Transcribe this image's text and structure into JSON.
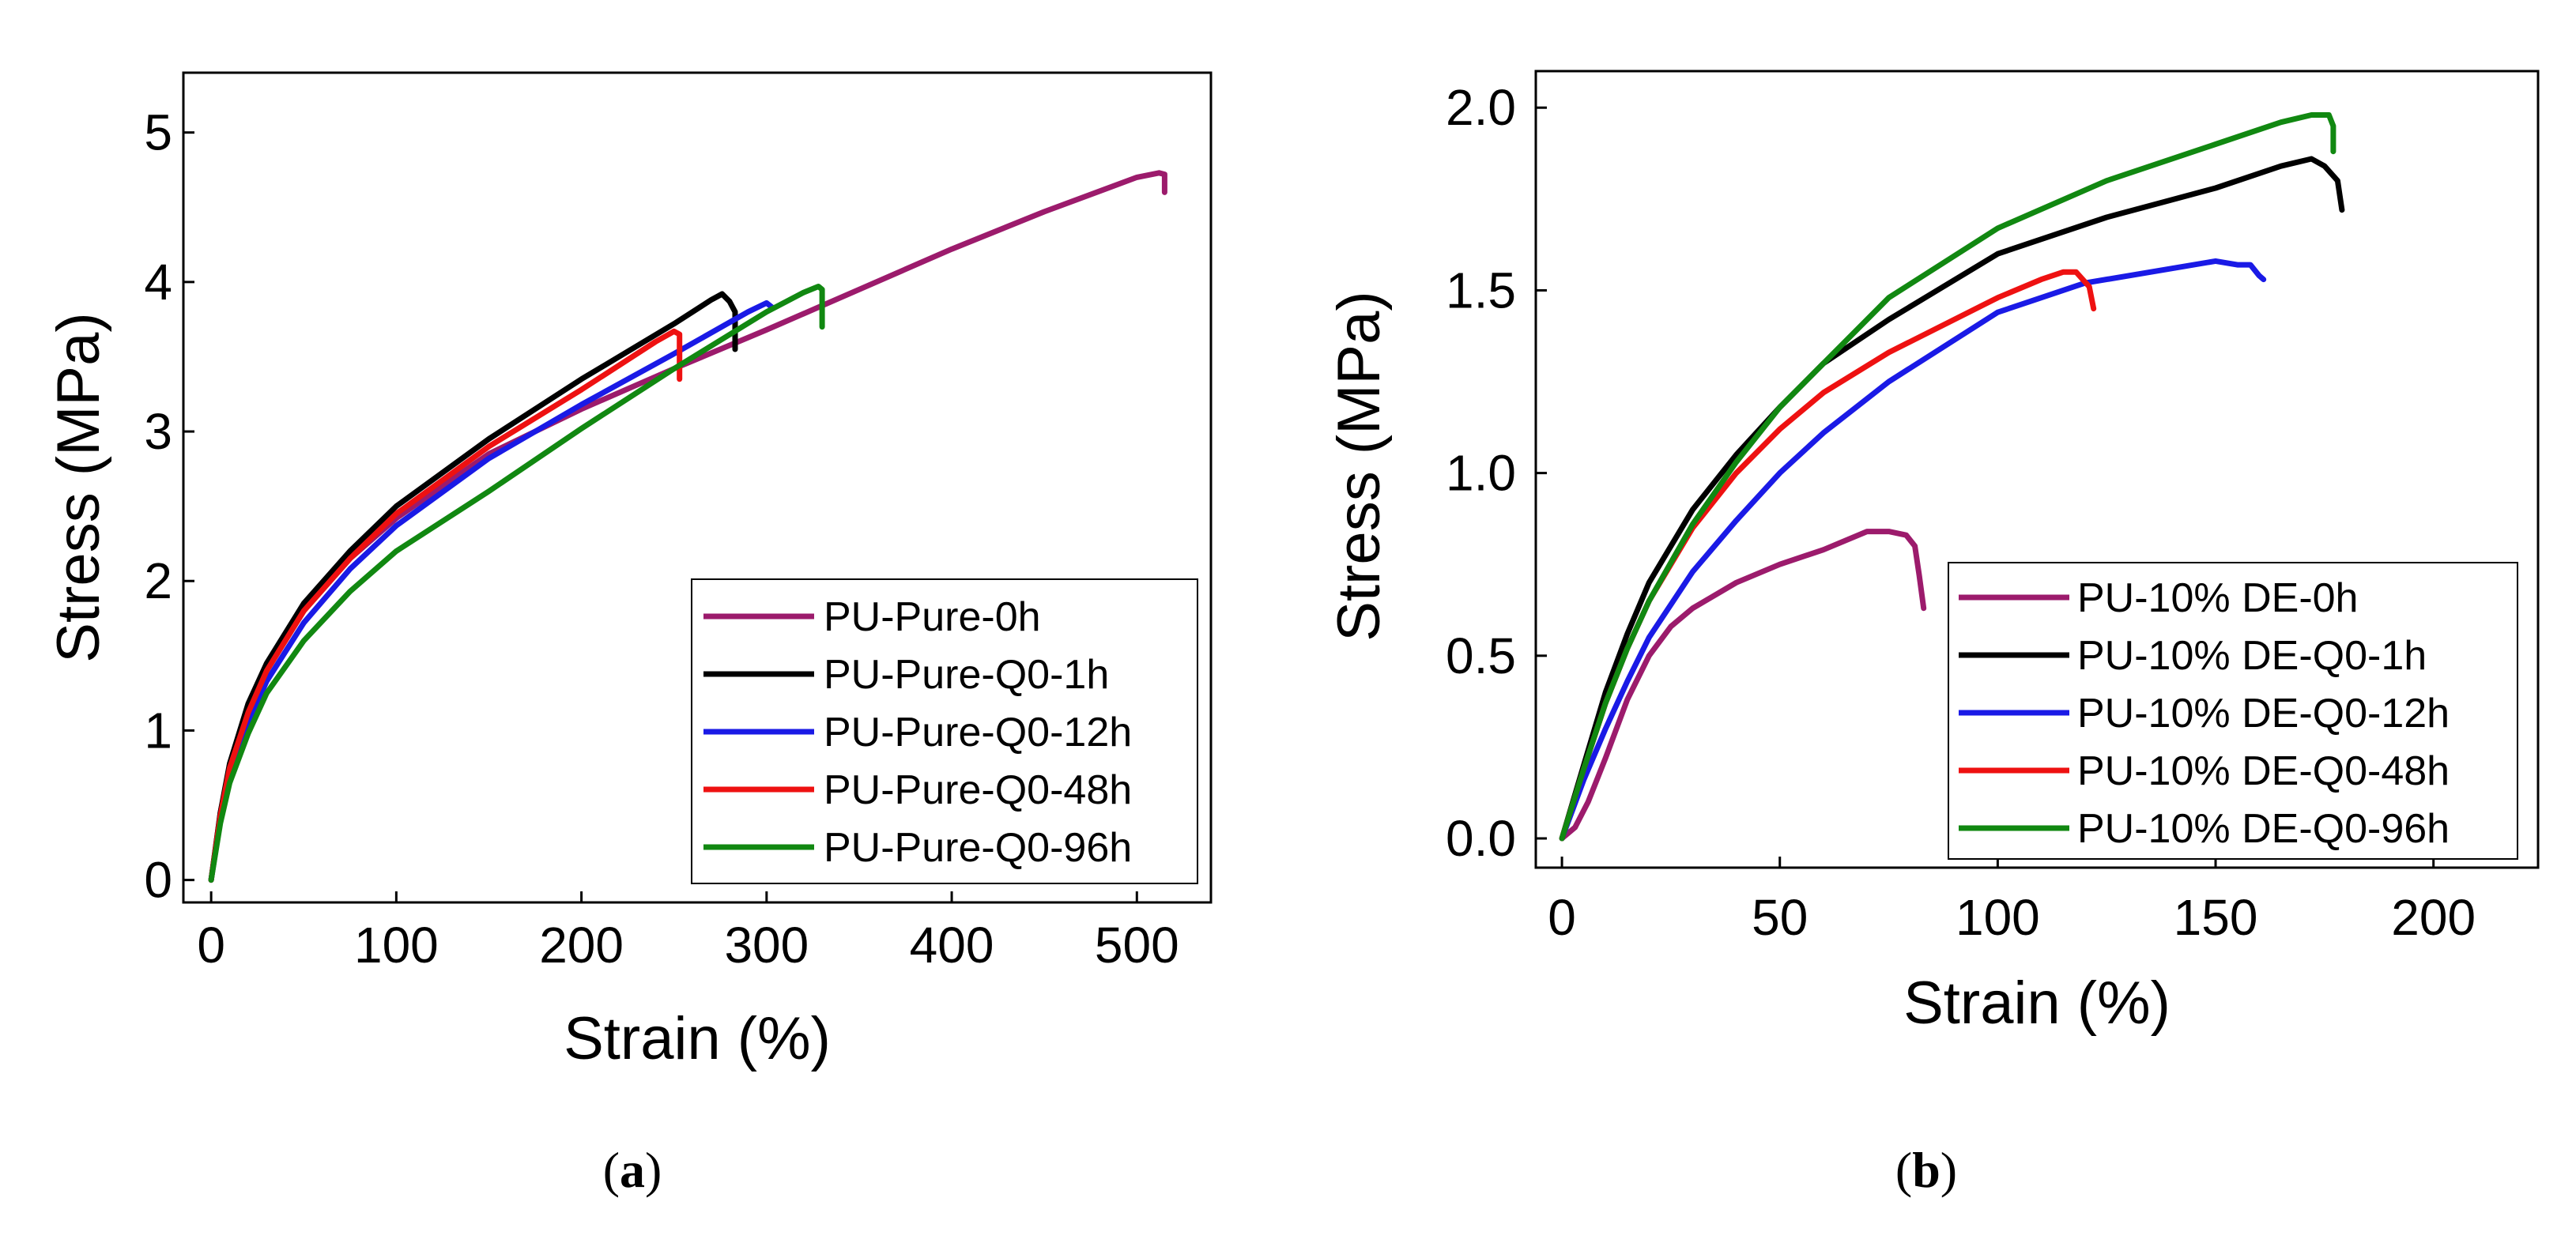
{
  "chart_data": [
    {
      "type": "line",
      "panel_label": "a",
      "xlabel": "Strain (%)",
      "ylabel": "Stress (MPa)",
      "xlim": [
        -15,
        540
      ],
      "ylim": [
        -0.15,
        5.4
      ],
      "xticks": [
        0,
        100,
        200,
        300,
        400,
        500
      ],
      "yticks": [
        0,
        1,
        2,
        3,
        4,
        5
      ],
      "legend_position": "bottom-right",
      "series": [
        {
          "name": "PU-Pure-0h",
          "color": "#9C1B6C",
          "points": [
            [
              0,
              0
            ],
            [
              5,
              0.45
            ],
            [
              10,
              0.75
            ],
            [
              20,
              1.12
            ],
            [
              30,
              1.4
            ],
            [
              50,
              1.8
            ],
            [
              75,
              2.15
            ],
            [
              100,
              2.42
            ],
            [
              150,
              2.85
            ],
            [
              200,
              3.15
            ],
            [
              250,
              3.42
            ],
            [
              300,
              3.68
            ],
            [
              350,
              3.95
            ],
            [
              400,
              4.22
            ],
            [
              450,
              4.47
            ],
            [
              500,
              4.7
            ],
            [
              512,
              4.73
            ],
            [
              515,
              4.72
            ],
            [
              515,
              4.6
            ]
          ]
        },
        {
          "name": "PU-Pure-Q0-1h",
          "color": "#000000",
          "points": [
            [
              0,
              0
            ],
            [
              5,
              0.45
            ],
            [
              10,
              0.78
            ],
            [
              20,
              1.18
            ],
            [
              30,
              1.45
            ],
            [
              50,
              1.85
            ],
            [
              75,
              2.2
            ],
            [
              100,
              2.5
            ],
            [
              150,
              2.95
            ],
            [
              200,
              3.35
            ],
            [
              250,
              3.72
            ],
            [
              270,
              3.88
            ],
            [
              276,
              3.92
            ],
            [
              280,
              3.87
            ],
            [
              283,
              3.8
            ],
            [
              283,
              3.55
            ]
          ]
        },
        {
          "name": "PU-Pure-Q0-12h",
          "color": "#1A1AE6",
          "points": [
            [
              0,
              0
            ],
            [
              5,
              0.4
            ],
            [
              10,
              0.7
            ],
            [
              20,
              1.05
            ],
            [
              30,
              1.33
            ],
            [
              50,
              1.72
            ],
            [
              75,
              2.08
            ],
            [
              100,
              2.37
            ],
            [
              150,
              2.82
            ],
            [
              200,
              3.18
            ],
            [
              250,
              3.52
            ],
            [
              290,
              3.8
            ],
            [
              300,
              3.86
            ],
            [
              303,
              3.83
            ]
          ]
        },
        {
          "name": "PU-Pure-Q0-48h",
          "color": "#EE1111",
          "points": [
            [
              0,
              0
            ],
            [
              5,
              0.43
            ],
            [
              10,
              0.75
            ],
            [
              20,
              1.12
            ],
            [
              30,
              1.4
            ],
            [
              50,
              1.8
            ],
            [
              75,
              2.15
            ],
            [
              100,
              2.45
            ],
            [
              150,
              2.9
            ],
            [
              200,
              3.28
            ],
            [
              240,
              3.6
            ],
            [
              250,
              3.67
            ],
            [
              253,
              3.65
            ],
            [
              253,
              3.35
            ]
          ]
        },
        {
          "name": "PU-Pure-Q0-96h",
          "color": "#118811",
          "points": [
            [
              0,
              0
            ],
            [
              5,
              0.38
            ],
            [
              10,
              0.65
            ],
            [
              20,
              0.98
            ],
            [
              30,
              1.25
            ],
            [
              50,
              1.6
            ],
            [
              75,
              1.93
            ],
            [
              100,
              2.2
            ],
            [
              150,
              2.6
            ],
            [
              200,
              3.02
            ],
            [
              250,
              3.42
            ],
            [
              300,
              3.8
            ],
            [
              320,
              3.93
            ],
            [
              328,
              3.97
            ],
            [
              330,
              3.95
            ],
            [
              330,
              3.7
            ]
          ]
        }
      ],
      "legend": [
        "PU-Pure-0h",
        "PU-Pure-Q0-1h",
        "PU-Pure-Q0-12h",
        "PU-Pure-Q0-48h",
        "PU-Pure-Q0-96h"
      ]
    },
    {
      "type": "line",
      "panel_label": "b",
      "xlabel": "Strain (%)",
      "ylabel": "Stress (MPa)",
      "xlim": [
        -6,
        224
      ],
      "ylim": [
        -0.08,
        2.1
      ],
      "xticks": [
        0,
        50,
        100,
        150,
        200
      ],
      "yticks": [
        0.0,
        0.5,
        1.0,
        1.5,
        2.0
      ],
      "ytick_labels": [
        "0.0",
        "0.5",
        "1.0",
        "1.5",
        "2.0"
      ],
      "legend_position": "bottom-right",
      "series": [
        {
          "name": "PU-10% DE-0h",
          "color": "#9C1B6C",
          "points": [
            [
              0,
              0
            ],
            [
              3,
              0.03
            ],
            [
              6,
              0.1
            ],
            [
              10,
              0.22
            ],
            [
              15,
              0.38
            ],
            [
              20,
              0.5
            ],
            [
              25,
              0.58
            ],
            [
              30,
              0.63
            ],
            [
              40,
              0.7
            ],
            [
              50,
              0.75
            ],
            [
              60,
              0.79
            ],
            [
              70,
              0.84
            ],
            [
              75,
              0.84
            ],
            [
              79,
              0.83
            ],
            [
              81,
              0.8
            ],
            [
              82,
              0.72
            ],
            [
              83,
              0.63
            ]
          ]
        },
        {
          "name": "PU-10% DE-Q0-1h",
          "color": "#000000",
          "points": [
            [
              0,
              0
            ],
            [
              5,
              0.2
            ],
            [
              10,
              0.4
            ],
            [
              15,
              0.56
            ],
            [
              20,
              0.7
            ],
            [
              30,
              0.9
            ],
            [
              40,
              1.05
            ],
            [
              50,
              1.18
            ],
            [
              60,
              1.3
            ],
            [
              75,
              1.42
            ],
            [
              100,
              1.6
            ],
            [
              125,
              1.7
            ],
            [
              150,
              1.78
            ],
            [
              165,
              1.84
            ],
            [
              172,
              1.86
            ],
            [
              175,
              1.84
            ],
            [
              178,
              1.8
            ],
            [
              179,
              1.72
            ]
          ]
        },
        {
          "name": "PU-10% DE-Q0-12h",
          "color": "#1A1AE6",
          "points": [
            [
              0,
              0
            ],
            [
              5,
              0.16
            ],
            [
              10,
              0.3
            ],
            [
              15,
              0.43
            ],
            [
              20,
              0.55
            ],
            [
              30,
              0.73
            ],
            [
              40,
              0.87
            ],
            [
              50,
              1.0
            ],
            [
              60,
              1.11
            ],
            [
              75,
              1.25
            ],
            [
              100,
              1.44
            ],
            [
              120,
              1.52
            ],
            [
              140,
              1.56
            ],
            [
              150,
              1.58
            ],
            [
              155,
              1.57
            ],
            [
              158,
              1.57
            ],
            [
              160,
              1.54
            ],
            [
              161,
              1.53
            ]
          ]
        },
        {
          "name": "PU-10% DE-Q0-48h",
          "color": "#EE1111",
          "points": [
            [
              0,
              0
            ],
            [
              5,
              0.19
            ],
            [
              10,
              0.37
            ],
            [
              15,
              0.52
            ],
            [
              20,
              0.65
            ],
            [
              30,
              0.85
            ],
            [
              40,
              1.0
            ],
            [
              50,
              1.12
            ],
            [
              60,
              1.22
            ],
            [
              75,
              1.33
            ],
            [
              100,
              1.48
            ],
            [
              110,
              1.53
            ],
            [
              115,
              1.55
            ],
            [
              118,
              1.55
            ],
            [
              121,
              1.51
            ],
            [
              122,
              1.45
            ]
          ]
        },
        {
          "name": "PU-10% DE-Q0-96h",
          "color": "#118811",
          "points": [
            [
              0,
              0
            ],
            [
              5,
              0.19
            ],
            [
              10,
              0.37
            ],
            [
              15,
              0.52
            ],
            [
              20,
              0.65
            ],
            [
              30,
              0.86
            ],
            [
              40,
              1.03
            ],
            [
              50,
              1.18
            ],
            [
              60,
              1.3
            ],
            [
              75,
              1.48
            ],
            [
              100,
              1.67
            ],
            [
              125,
              1.8
            ],
            [
              150,
              1.9
            ],
            [
              165,
              1.96
            ],
            [
              172,
              1.98
            ],
            [
              176,
              1.98
            ],
            [
              177,
              1.95
            ],
            [
              177,
              1.88
            ]
          ]
        }
      ],
      "legend": [
        "PU-10% DE-0h",
        "PU-10% DE-Q0-1h",
        "PU-10% DE-Q0-12h",
        "PU-10% DE-Q0-48h",
        "PU-10% DE-Q0-96h"
      ]
    }
  ],
  "captions": {
    "a": {
      "open": "(",
      "letter": "a",
      "close": ")"
    },
    "b": {
      "open": "(",
      "letter": "b",
      "close": ")"
    }
  }
}
